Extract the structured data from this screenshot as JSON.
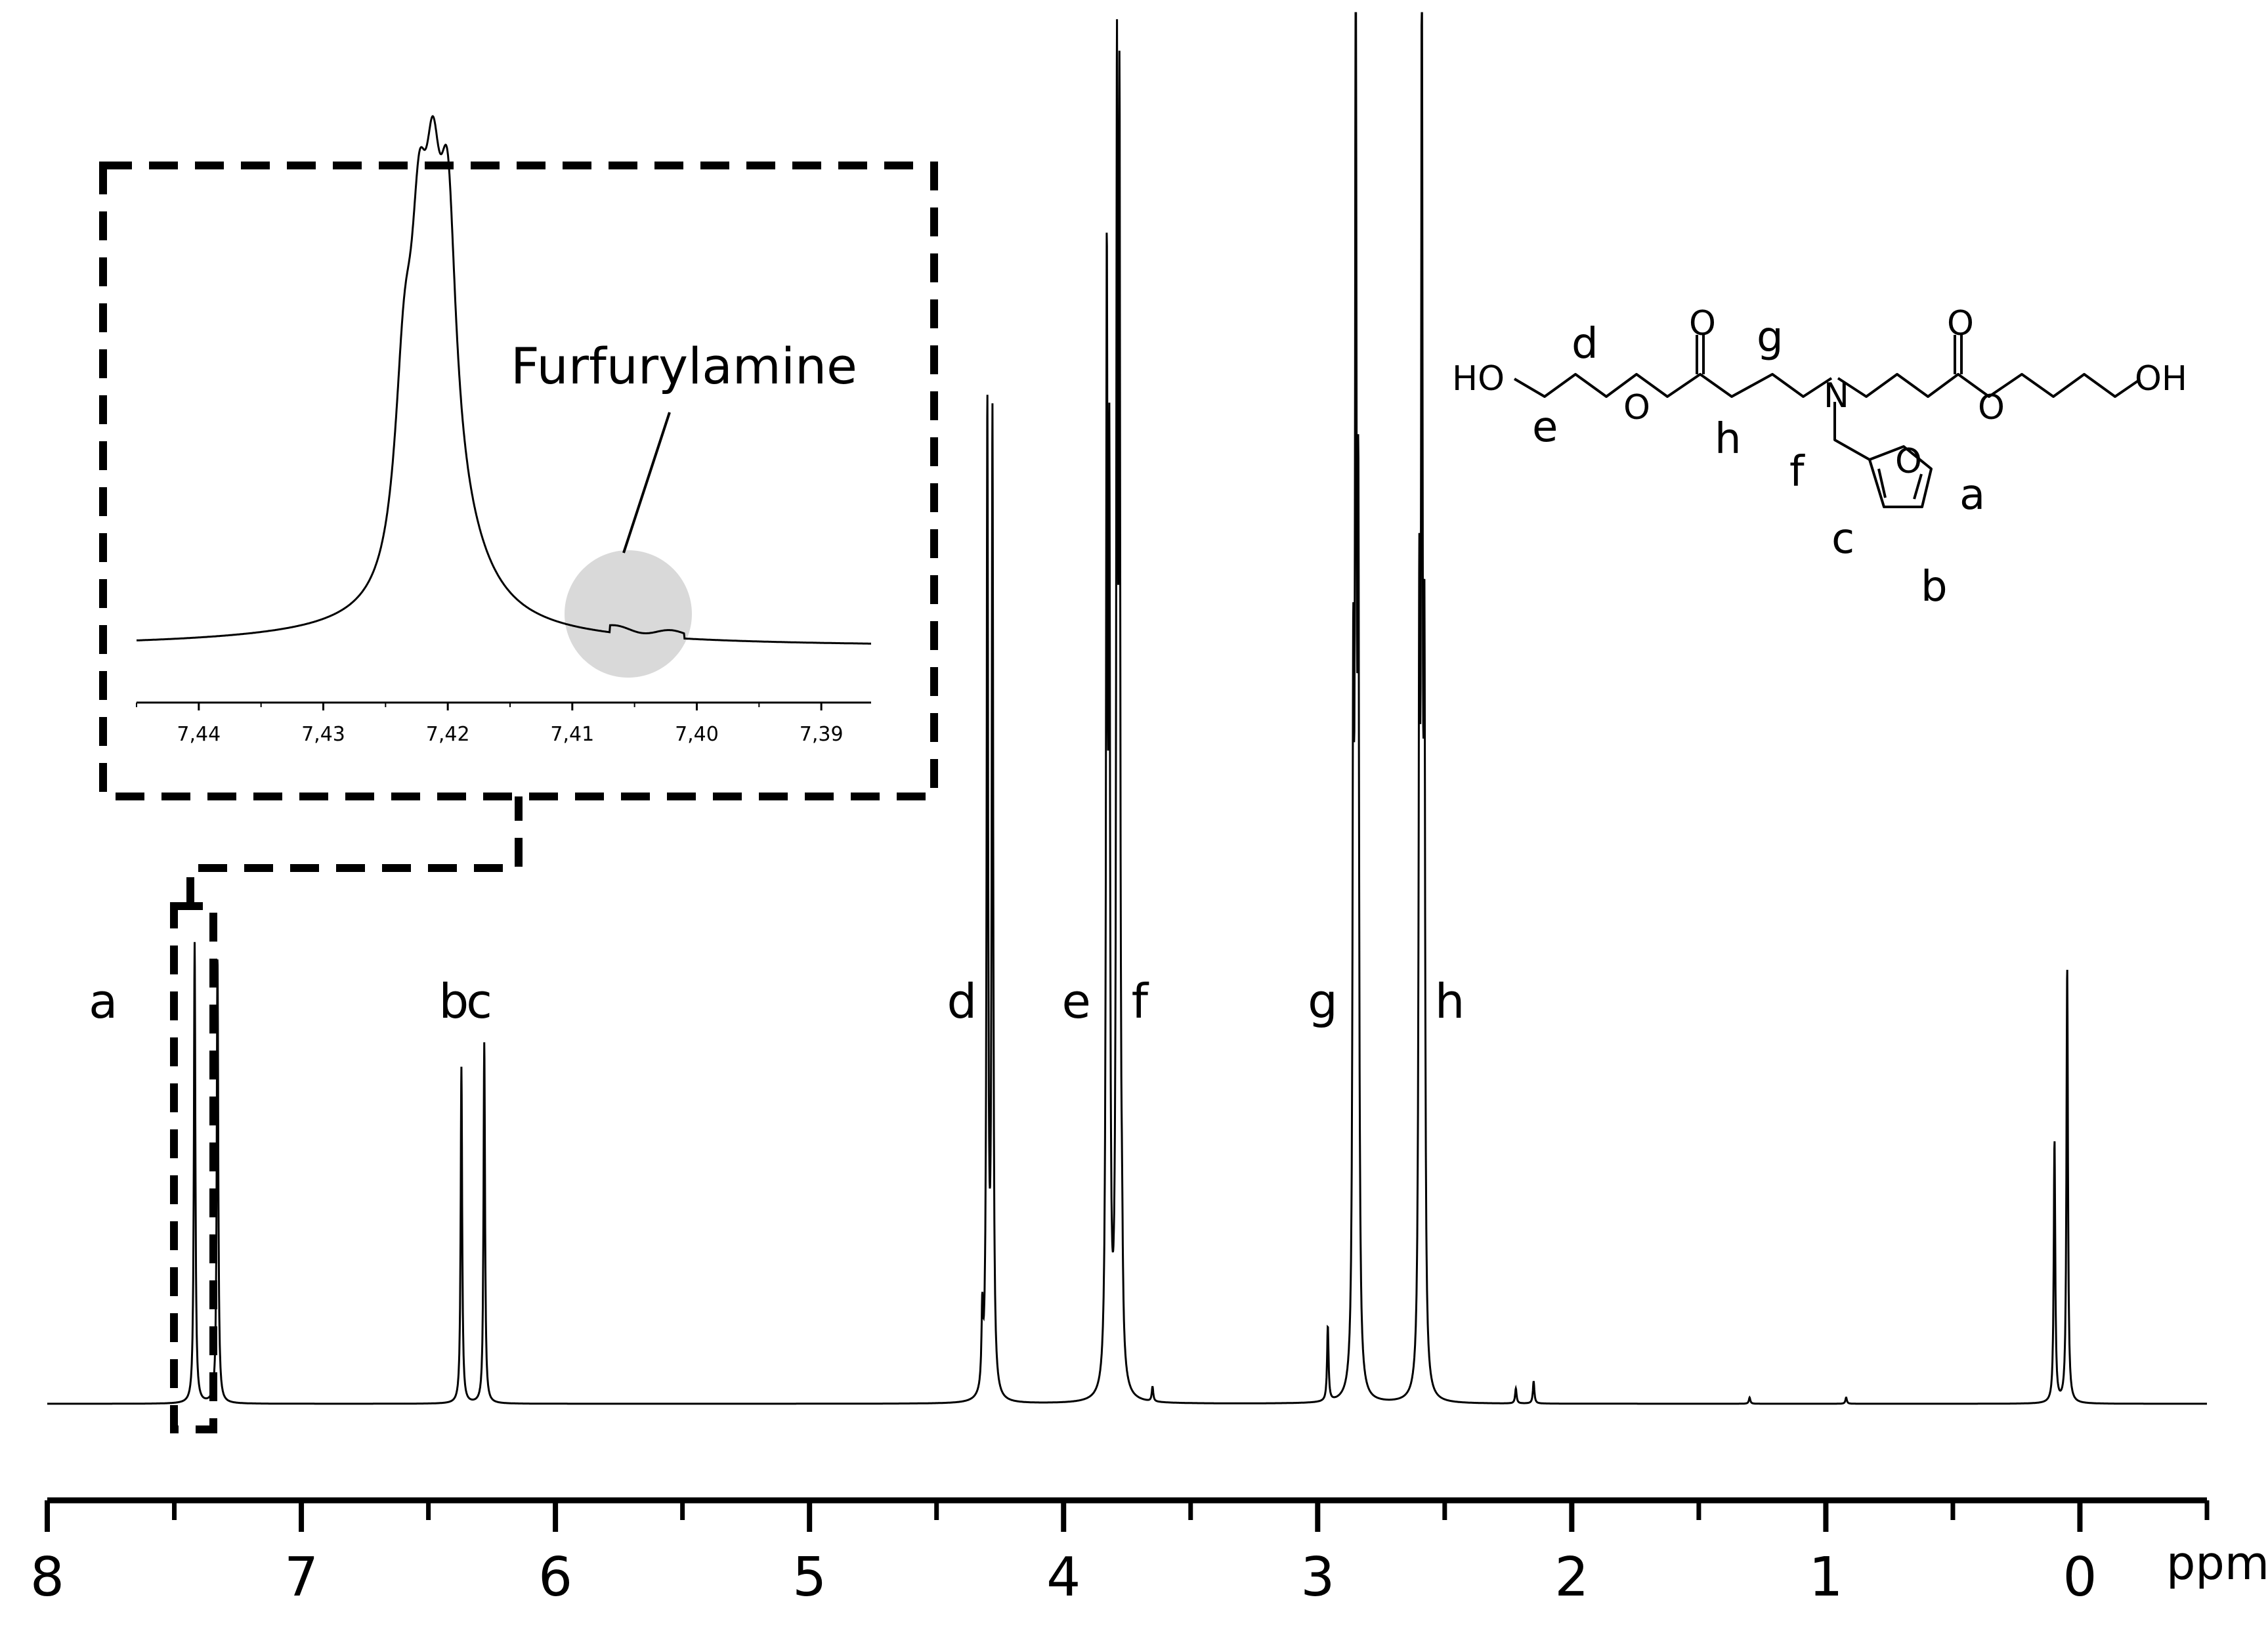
{
  "chart_data": {
    "type": "line",
    "title": "",
    "xlabel": "ppm",
    "ylabel": "",
    "x_reversed": true,
    "xlim": [
      8.0,
      -0.5
    ],
    "x_ticks": [
      {
        "value": 8,
        "label": "8"
      },
      {
        "value": 7,
        "label": "7"
      },
      {
        "value": 6,
        "label": "6"
      },
      {
        "value": 5,
        "label": "5"
      },
      {
        "value": 4,
        "label": "4"
      },
      {
        "value": 3,
        "label": "3"
      },
      {
        "value": 2,
        "label": "2"
      },
      {
        "value": 1,
        "label": "1"
      },
      {
        "value": 0,
        "label": "0"
      }
    ],
    "grid": false,
    "series": [
      {
        "peaks": [
          {
            "ppm": 7.42,
            "height": 0.37
          },
          {
            "ppm": 7.33,
            "height": 0.36
          },
          {
            "ppm": 6.37,
            "height": 0.27
          },
          {
            "ppm": 6.28,
            "height": 0.29
          },
          {
            "ppm": 4.3,
            "height": 0.79
          },
          {
            "ppm": 4.28,
            "height": 0.78
          },
          {
            "ppm": 4.32,
            "height": 0.06
          },
          {
            "ppm": 3.83,
            "height": 0.86
          },
          {
            "ppm": 3.82,
            "height": 0.69
          },
          {
            "ppm": 3.79,
            "height": 0.99
          },
          {
            "ppm": 3.78,
            "height": 0.96
          },
          {
            "ppm": 3.77,
            "height": 0.06
          },
          {
            "ppm": 3.65,
            "height": 0.012
          },
          {
            "ppm": 2.96,
            "height": 0.06
          },
          {
            "ppm": 2.86,
            "height": 0.5
          },
          {
            "ppm": 2.85,
            "height": 1.12
          },
          {
            "ppm": 2.84,
            "height": 0.64
          },
          {
            "ppm": 2.6,
            "height": 0.56
          },
          {
            "ppm": 2.59,
            "height": 1.09
          },
          {
            "ppm": 2.58,
            "height": 0.53
          },
          {
            "ppm": 2.22,
            "height": 0.012
          },
          {
            "ppm": 2.15,
            "height": 0.018
          },
          {
            "ppm": 1.3,
            "height": 0.005
          },
          {
            "ppm": 0.92,
            "height": 0.005
          },
          {
            "ppm": 0.1,
            "height": 0.21
          },
          {
            "ppm": 0.05,
            "height": 0.35
          }
        ]
      }
    ],
    "peak_labels": [
      {
        "label": "a",
        "ppm": 7.78
      },
      {
        "label": "b",
        "ppm": 6.4
      },
      {
        "label": "c",
        "ppm": 6.3
      },
      {
        "label": "d",
        "ppm": 4.4
      },
      {
        "label": "e",
        "ppm": 3.95
      },
      {
        "label": "f",
        "ppm": 3.7
      },
      {
        "label": "g",
        "ppm": 2.98
      },
      {
        "label": "h",
        "ppm": 2.48
      }
    ],
    "inset": {
      "xlim": [
        7.445,
        7.386
      ],
      "x_ticks": [
        {
          "value": 7.44,
          "label": "7,44"
        },
        {
          "value": 7.43,
          "label": "7,43"
        },
        {
          "value": 7.42,
          "label": "7,42"
        },
        {
          "value": 7.41,
          "label": "7,41"
        },
        {
          "value": 7.4,
          "label": "7,40"
        },
        {
          "value": 7.39,
          "label": "7,39"
        }
      ],
      "annotation": "Furfurylamine",
      "annotation_ppm": 7.405,
      "zoom_region": [
        7.47,
        7.36
      ]
    }
  },
  "structure": {
    "atoms": {
      "ho_left": "HO",
      "oh_right": "OH",
      "o_carbonyl_1": "O",
      "o_ester_1": "O",
      "o_carbonyl_2": "O",
      "o_ester_2": "O",
      "n": "N",
      "o_ring": "O"
    },
    "labels": [
      "d",
      "e",
      "g",
      "h",
      "f",
      "a",
      "b",
      "c"
    ]
  }
}
